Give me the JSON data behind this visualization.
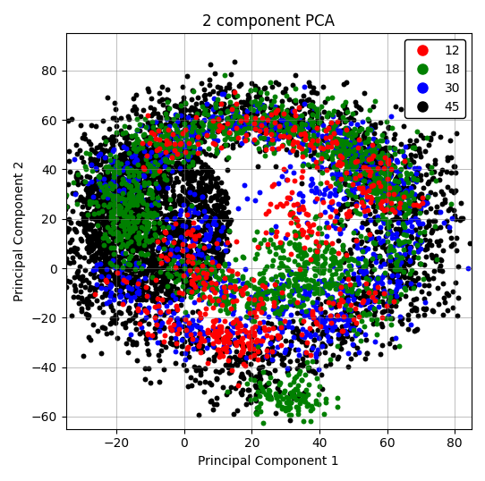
{
  "title": "2 component PCA",
  "xlabel": "Principal Component 1",
  "ylabel": "Principal Component 2",
  "xlim": [
    -35,
    85
  ],
  "ylim": [
    -65,
    95
  ],
  "categories": [
    {
      "label": "12",
      "color": "red"
    },
    {
      "label": "18",
      "color": "green"
    },
    {
      "label": "30",
      "color": "blue"
    },
    {
      "label": "45",
      "color": "black"
    }
  ],
  "marker_size": 18,
  "alpha": 1.0,
  "grid": true,
  "legend_loc": "upper right",
  "figsize": [
    5.42,
    5.38
  ],
  "dpi": 100,
  "xticks": [
    -20,
    0,
    20,
    40,
    60,
    80
  ],
  "yticks": [
    -60,
    -40,
    -20,
    0,
    20,
    40,
    60,
    80
  ]
}
